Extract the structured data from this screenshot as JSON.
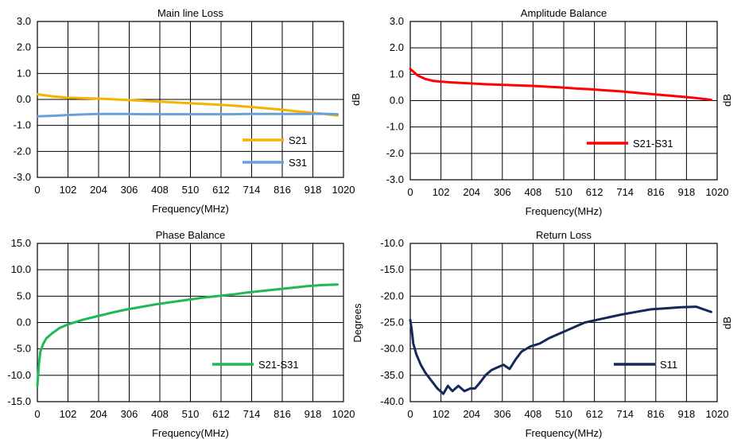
{
  "chart_data": [
    {
      "type": "line",
      "title": "Main line Loss",
      "xlabel": "Frequency(MHz)",
      "ylabel": "dB",
      "xlim": [
        0,
        1020
      ],
      "ylim": [
        -3.0,
        3.0
      ],
      "xticks": [
        0,
        102,
        204,
        306,
        408,
        510,
        612,
        714,
        816,
        918,
        1020
      ],
      "xtick_labels": [
        "0",
        "102",
        "204",
        "306",
        "408",
        "510",
        "612",
        "714",
        "816",
        "918",
        "1020"
      ],
      "yticks": [
        -3.0,
        -2.0,
        -1.0,
        0.0,
        1.0,
        2.0,
        3.0
      ],
      "ytick_labels": [
        "-3.0",
        "-2.0",
        "-1.0",
        "0.0",
        "1.0",
        "2.0",
        "3.0"
      ],
      "grid": true,
      "legend_position": "bottom-right",
      "series": [
        {
          "name": "S21",
          "color": "#F4B400",
          "x": [
            0,
            50,
            100,
            150,
            200,
            250,
            300,
            350,
            400,
            450,
            500,
            550,
            600,
            650,
            700,
            750,
            800,
            850,
            900,
            950,
            1000
          ],
          "y": [
            0.2,
            0.12,
            0.07,
            0.05,
            0.03,
            0.01,
            -0.02,
            -0.05,
            -0.08,
            -0.11,
            -0.14,
            -0.17,
            -0.2,
            -0.24,
            -0.28,
            -0.33,
            -0.38,
            -0.44,
            -0.5,
            -0.55,
            -0.62
          ]
        },
        {
          "name": "S31",
          "color": "#6A9FD8",
          "x": [
            0,
            50,
            100,
            150,
            200,
            250,
            300,
            350,
            400,
            450,
            500,
            550,
            600,
            650,
            700,
            750,
            800,
            850,
            900,
            950,
            1000
          ],
          "y": [
            -0.65,
            -0.63,
            -0.6,
            -0.58,
            -0.56,
            -0.56,
            -0.56,
            -0.57,
            -0.57,
            -0.57,
            -0.57,
            -0.57,
            -0.57,
            -0.57,
            -0.56,
            -0.56,
            -0.56,
            -0.56,
            -0.56,
            -0.55,
            -0.57
          ]
        }
      ]
    },
    {
      "type": "line",
      "title": "Amplitude Balance",
      "xlabel": "Frequency(MHz)",
      "ylabel": "dB",
      "xlim": [
        0,
        1020
      ],
      "ylim": [
        -3.0,
        3.0
      ],
      "xticks": [
        0,
        102,
        204,
        306,
        408,
        510,
        612,
        714,
        816,
        918,
        1020
      ],
      "xtick_labels": [
        "0",
        "102",
        "204",
        "306",
        "408",
        "510",
        "612",
        "714",
        "816",
        "918",
        "1020"
      ],
      "yticks": [
        -3.0,
        -2.0,
        -1.0,
        0.0,
        1.0,
        2.0,
        3.0
      ],
      "ytick_labels": [
        "-3.0",
        "-2.0",
        "-1.0",
        "0.0",
        "1.0",
        "2.0",
        "3.0"
      ],
      "grid": true,
      "legend_position": "bottom-right",
      "series": [
        {
          "name": "S21-S31",
          "color": "#FF0000",
          "x": [
            0,
            10,
            25,
            50,
            75,
            100,
            150,
            200,
            250,
            300,
            350,
            400,
            450,
            500,
            550,
            600,
            650,
            700,
            750,
            800,
            850,
            900,
            950,
            1000
          ],
          "y": [
            1.2,
            1.1,
            0.95,
            0.82,
            0.75,
            0.72,
            0.68,
            0.65,
            0.62,
            0.6,
            0.58,
            0.56,
            0.53,
            0.5,
            0.46,
            0.43,
            0.39,
            0.35,
            0.3,
            0.25,
            0.2,
            0.15,
            0.1,
            0.03
          ]
        }
      ]
    },
    {
      "type": "line",
      "title": "Phase Balance",
      "xlabel": "Frequency(MHz)",
      "ylabel": "Degrees",
      "xlim": [
        0,
        1020
      ],
      "ylim": [
        -15.0,
        15.0
      ],
      "xticks": [
        0,
        102,
        204,
        306,
        408,
        510,
        612,
        714,
        816,
        918,
        1020
      ],
      "xtick_labels": [
        "0",
        "102",
        "204",
        "306",
        "408",
        "510",
        "612",
        "714",
        "816",
        "918",
        "1020"
      ],
      "yticks": [
        -15.0,
        -10.0,
        -5.0,
        0.0,
        5.0,
        10.0,
        15.0
      ],
      "ytick_labels": [
        "-15.0",
        "-10.0",
        "-5.0",
        "0.0",
        "5.0",
        "10.0",
        "15.0"
      ],
      "grid": true,
      "legend_position": "bottom-right",
      "series": [
        {
          "name": "S21-S31",
          "color": "#1DB954",
          "x": [
            0,
            5,
            10,
            20,
            30,
            50,
            75,
            100,
            150,
            200,
            250,
            300,
            350,
            400,
            450,
            500,
            550,
            600,
            650,
            700,
            750,
            800,
            850,
            900,
            950,
            1000
          ],
          "y": [
            -12.0,
            -8.0,
            -5.5,
            -4.0,
            -3.0,
            -2.0,
            -1.0,
            -0.4,
            0.5,
            1.2,
            1.9,
            2.5,
            3.0,
            3.5,
            3.9,
            4.3,
            4.7,
            5.0,
            5.3,
            5.7,
            6.0,
            6.3,
            6.6,
            6.9,
            7.1,
            7.2
          ]
        }
      ]
    },
    {
      "type": "line",
      "title": "Return Loss",
      "xlabel": "Frequency(MHz)",
      "ylabel": "dB",
      "xlim": [
        0,
        1020
      ],
      "ylim": [
        -40.0,
        -10.0
      ],
      "xticks": [
        0,
        102,
        204,
        306,
        408,
        510,
        612,
        714,
        816,
        918,
        1020
      ],
      "xtick_labels": [
        "0",
        "102",
        "204",
        "306",
        "408",
        "510",
        "612",
        "714",
        "816",
        "918",
        "1020"
      ],
      "yticks": [
        -40.0,
        -35.0,
        -30.0,
        -25.0,
        -20.0,
        -15.0,
        -10.0
      ],
      "ytick_labels": [
        "-40.0",
        "-35.0",
        "-30.0",
        "-25.0",
        "-20.0",
        "-15.0",
        "-10.0"
      ],
      "grid": true,
      "legend_position": "bottom-right",
      "series": [
        {
          "name": "S11",
          "color": "#14285A",
          "x": [
            0,
            5,
            10,
            20,
            35,
            50,
            70,
            90,
            110,
            125,
            140,
            160,
            180,
            200,
            215,
            230,
            250,
            270,
            290,
            310,
            330,
            350,
            370,
            400,
            430,
            460,
            500,
            540,
            580,
            620,
            660,
            700,
            750,
            800,
            850,
            900,
            950,
            1000
          ],
          "y": [
            -24.5,
            -26.5,
            -29.0,
            -31.0,
            -33.0,
            -34.5,
            -36.0,
            -37.5,
            -38.5,
            -37.0,
            -38.0,
            -37.0,
            -38.0,
            -37.5,
            -37.5,
            -36.5,
            -35.0,
            -34.0,
            -33.5,
            -33.0,
            -33.8,
            -32.0,
            -30.5,
            -29.5,
            -29.0,
            -28.0,
            -27.0,
            -26.0,
            -25.0,
            -24.5,
            -24.0,
            -23.5,
            -23.0,
            -22.5,
            -22.3,
            -22.1,
            -22.0,
            -23.0
          ]
        }
      ]
    }
  ]
}
